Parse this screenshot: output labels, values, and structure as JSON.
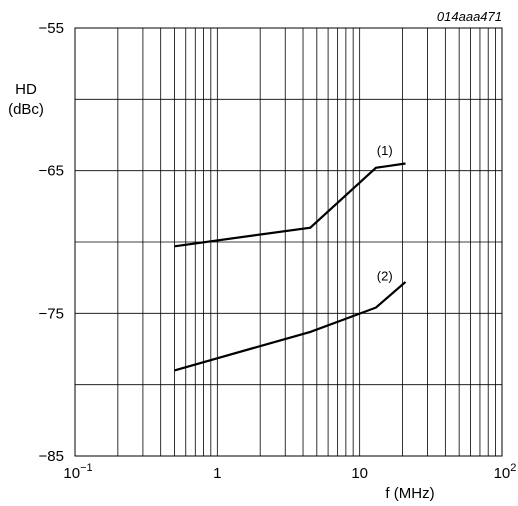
{
  "figure_id": "014aaa471",
  "chart_data": {
    "type": "line",
    "title": "",
    "xlabel": "f (MHz)",
    "ylabel_line1": "HD",
    "ylabel_line2": "(dBc)",
    "x_scale": "log",
    "xlim": [
      0.1,
      100
    ],
    "ylim": [
      -85,
      -55
    ],
    "grid": true,
    "x_ticks": [
      {
        "value": 0.1,
        "base": "10",
        "exp": "−1"
      },
      {
        "value": 1,
        "base": "1",
        "exp": ""
      },
      {
        "value": 10,
        "base": "10",
        "exp": ""
      },
      {
        "value": 100,
        "base": "10",
        "exp": "2"
      }
    ],
    "y_ticks": [
      {
        "value": -55,
        "label": "−55"
      },
      {
        "value": -65,
        "label": "−65"
      },
      {
        "value": -75,
        "label": "−75"
      },
      {
        "value": -85,
        "label": "−85"
      }
    ],
    "y_gridlines": [
      -55,
      -60,
      -65,
      -70,
      -75,
      -80,
      -85
    ],
    "series": [
      {
        "label": "(1)",
        "label_at": {
          "x": 15,
          "y": -63.9
        },
        "points": [
          {
            "x": 0.5,
            "y": -70.3
          },
          {
            "x": 4.5,
            "y": -69.0
          },
          {
            "x": 13,
            "y": -64.8
          },
          {
            "x": 21,
            "y": -64.5
          }
        ]
      },
      {
        "label": "(2)",
        "label_at": {
          "x": 15,
          "y": -72.7
        },
        "points": [
          {
            "x": 0.5,
            "y": -79.0
          },
          {
            "x": 4.5,
            "y": -76.3
          },
          {
            "x": 13,
            "y": -74.6
          },
          {
            "x": 21,
            "y": -72.8
          }
        ]
      }
    ]
  }
}
